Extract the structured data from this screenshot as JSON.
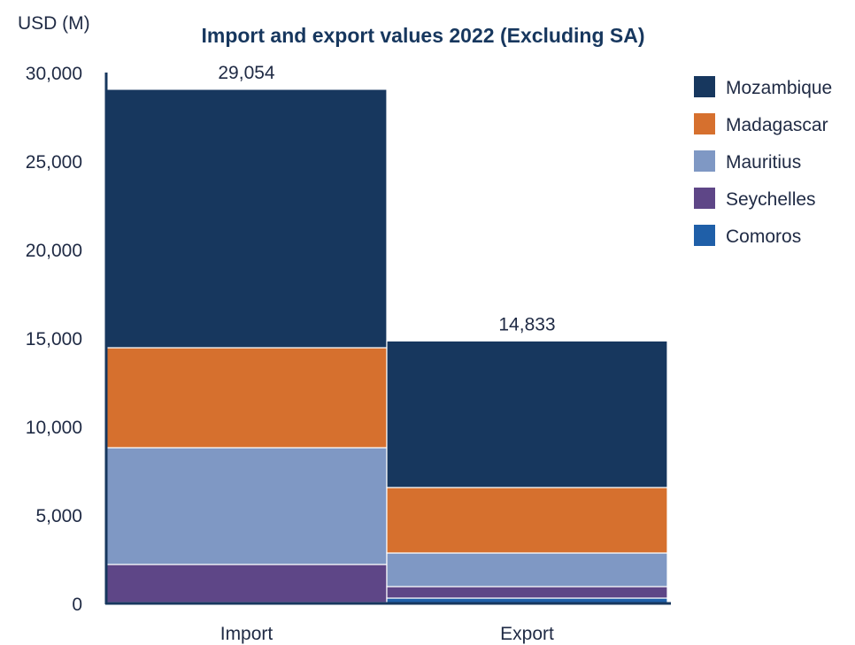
{
  "chart_data": {
    "type": "bar",
    "stacked": true,
    "title": "Import and export values 2022 (Excluding SA)",
    "ylabel": "USD (M)",
    "xlabel": "",
    "categories": [
      "Import",
      "Export"
    ],
    "ylim": [
      0,
      30000
    ],
    "yticks": [
      "0",
      "5,000",
      "10,000",
      "15,000",
      "20,000",
      "25,000",
      "30,000"
    ],
    "yticks_values": [
      0,
      5000,
      10000,
      15000,
      20000,
      25000,
      30000
    ],
    "totals": [
      29054,
      14833
    ],
    "total_labels": [
      "29,054",
      "14,833"
    ],
    "legend_position": "right",
    "grid": false,
    "series": [
      {
        "name": "Comoros",
        "color": "#1f5fa8",
        "values": [
          50,
          300
        ]
      },
      {
        "name": "Seychelles",
        "color": "#5e4687",
        "values": [
          2150,
          650
        ]
      },
      {
        "name": "Mauritius",
        "color": "#7f98c4",
        "values": [
          6600,
          1900
        ]
      },
      {
        "name": "Madagascar",
        "color": "#d6702e",
        "values": [
          5650,
          3700
        ]
      },
      {
        "name": "Mozambique",
        "color": "#17375e",
        "values": [
          14604,
          8283
        ]
      }
    ],
    "legend_order": [
      "Mozambique",
      "Madagascar",
      "Mauritius",
      "Seychelles",
      "Comoros"
    ]
  }
}
